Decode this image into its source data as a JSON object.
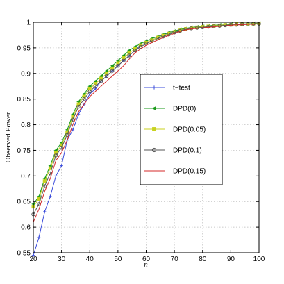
{
  "chart_data": {
    "type": "line",
    "title": "",
    "xlabel": "n",
    "ylabel": "Observed Power",
    "xlim": [
      20,
      100
    ],
    "ylim": [
      0.55,
      1
    ],
    "xticks": [
      "20",
      "30",
      "40",
      "50",
      "60",
      "70",
      "80",
      "90",
      "100"
    ],
    "yticks": [
      "0.55",
      "0.6",
      "0.65",
      "0.7",
      "0.75",
      "0.8",
      "0.85",
      "0.9",
      "0.95",
      "1"
    ],
    "grid": true,
    "legend_position": "center-right",
    "x": [
      20,
      22,
      24,
      26,
      28,
      30,
      32,
      34,
      36,
      38,
      40,
      42,
      44,
      46,
      48,
      50,
      52,
      54,
      56,
      58,
      60,
      62,
      64,
      66,
      68,
      70,
      72,
      74,
      76,
      78,
      80,
      82,
      84,
      86,
      88,
      90,
      92,
      94,
      96,
      98,
      100
    ],
    "series": [
      {
        "name": "t−test",
        "color": "#3b4cdb",
        "marker": "plus",
        "values": [
          0.545,
          0.58,
          0.63,
          0.66,
          0.7,
          0.72,
          0.77,
          0.79,
          0.82,
          0.84,
          0.86,
          0.87,
          0.885,
          0.895,
          0.905,
          0.915,
          0.925,
          0.935,
          0.945,
          0.955,
          0.96,
          0.965,
          0.97,
          0.975,
          0.98,
          0.982,
          0.985,
          0.987,
          0.989,
          0.99,
          0.991,
          0.992,
          0.993,
          0.994,
          0.995,
          0.995,
          0.996,
          0.996,
          0.997,
          0.997,
          0.998
        ]
      },
      {
        "name": "DPD(0)",
        "color": "#1a9a1a",
        "marker": "triangle",
        "values": [
          0.645,
          0.66,
          0.695,
          0.72,
          0.75,
          0.765,
          0.79,
          0.82,
          0.845,
          0.86,
          0.875,
          0.885,
          0.895,
          0.905,
          0.915,
          0.925,
          0.935,
          0.945,
          0.952,
          0.958,
          0.963,
          0.968,
          0.972,
          0.976,
          0.98,
          0.983,
          0.986,
          0.988,
          0.99,
          0.991,
          0.992,
          0.993,
          0.994,
          0.995,
          0.995,
          0.996,
          0.996,
          0.997,
          0.997,
          0.998,
          0.998
        ]
      },
      {
        "name": "DPD(0.05)",
        "color": "#c8d21e",
        "marker": "square",
        "values": [
          0.64,
          0.655,
          0.69,
          0.715,
          0.745,
          0.76,
          0.785,
          0.815,
          0.84,
          0.855,
          0.87,
          0.88,
          0.89,
          0.9,
          0.91,
          0.92,
          0.93,
          0.94,
          0.948,
          0.955,
          0.96,
          0.965,
          0.97,
          0.974,
          0.978,
          0.981,
          0.984,
          0.987,
          0.989,
          0.99,
          0.991,
          0.992,
          0.993,
          0.994,
          0.995,
          0.995,
          0.996,
          0.996,
          0.997,
          0.997,
          0.998
        ]
      },
      {
        "name": "DPD(0.1)",
        "color": "#555555",
        "marker": "circle",
        "values": [
          0.625,
          0.645,
          0.68,
          0.705,
          0.74,
          0.755,
          0.78,
          0.81,
          0.835,
          0.85,
          0.865,
          0.875,
          0.885,
          0.895,
          0.905,
          0.915,
          0.925,
          0.935,
          0.945,
          0.952,
          0.958,
          0.963,
          0.968,
          0.972,
          0.976,
          0.98,
          0.983,
          0.986,
          0.988,
          0.989,
          0.99,
          0.991,
          0.992,
          0.993,
          0.994,
          0.995,
          0.995,
          0.996,
          0.996,
          0.997,
          0.997
        ]
      },
      {
        "name": "DPD(0.15)",
        "color": "#d42a2a",
        "marker": "none",
        "values": [
          0.61,
          0.635,
          0.67,
          0.695,
          0.73,
          0.745,
          0.77,
          0.8,
          0.825,
          0.84,
          0.855,
          0.865,
          0.875,
          0.885,
          0.895,
          0.905,
          0.915,
          0.928,
          0.94,
          0.948,
          0.955,
          0.96,
          0.965,
          0.97,
          0.974,
          0.978,
          0.982,
          0.985,
          0.987,
          0.988,
          0.989,
          0.99,
          0.991,
          0.992,
          0.993,
          0.994,
          0.995,
          0.995,
          0.996,
          0.996,
          0.997
        ]
      }
    ]
  }
}
